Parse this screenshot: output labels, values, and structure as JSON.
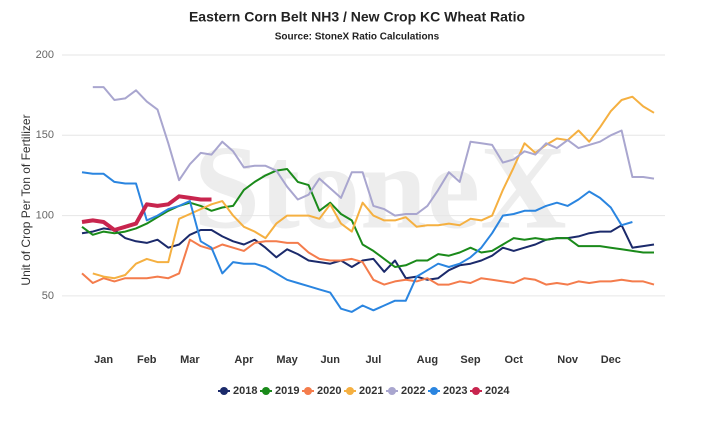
{
  "chart_data": {
    "type": "line",
    "title": "Eastern Corn Belt NH3 / New Crop KC Wheat Ratio",
    "subtitle": "Source: StoneX Ratio Calculations",
    "watermark": "StoneX",
    "y_label": "Unit of Crop Per Ton of Fertilizer",
    "categories": [
      null,
      null,
      "Jan",
      null,
      null,
      null,
      "Feb",
      null,
      null,
      null,
      "Mar",
      null,
      null,
      null,
      null,
      "Apr",
      null,
      null,
      null,
      "May",
      null,
      null,
      null,
      "Jun",
      null,
      null,
      null,
      "Jul",
      null,
      null,
      null,
      null,
      "Aug",
      null,
      null,
      null,
      "Sep",
      null,
      null,
      null,
      "Oct",
      null,
      null,
      null,
      null,
      "Nov",
      null,
      null,
      null,
      "Dec",
      null,
      null,
      null,
      null
    ],
    "ylim": [
      25,
      200
    ],
    "yticks": [
      50,
      100,
      150,
      200
    ],
    "grid": true,
    "legend": "bottom",
    "series": [
      {
        "name": "2018",
        "color": "#1b2a6b",
        "values": [
          89,
          90,
          92,
          91,
          86,
          84,
          83,
          85,
          80,
          82,
          88,
          91,
          91,
          87,
          84,
          82,
          85,
          80,
          74,
          79,
          76,
          72,
          71,
          70,
          72,
          68,
          72,
          73,
          65,
          72,
          61,
          62,
          60,
          61,
          66,
          69,
          70,
          72,
          75,
          80,
          78,
          80,
          82,
          85,
          86,
          86,
          87,
          89,
          90,
          90,
          94,
          80,
          81,
          82
        ]
      },
      {
        "name": "2019",
        "color": "#1a8a1a",
        "values": [
          93,
          88,
          90,
          89,
          90,
          92,
          95,
          99,
          103,
          106,
          108,
          106,
          103,
          105,
          106,
          116,
          121,
          125,
          128,
          129,
          121,
          119,
          103,
          108,
          101,
          97,
          82,
          78,
          73,
          68,
          69,
          72,
          72,
          76,
          75,
          77,
          80,
          77,
          78,
          82,
          86,
          85,
          86,
          85,
          86,
          86,
          81,
          81,
          81,
          80,
          79,
          78,
          77,
          77
        ]
      },
      {
        "name": "2020",
        "color": "#f47c4c",
        "values": [
          64,
          58,
          61,
          59,
          61,
          61,
          61,
          62,
          61,
          64,
          85,
          81,
          79,
          82,
          80,
          78,
          83,
          84,
          84,
          83,
          83,
          77,
          73,
          72,
          72,
          73,
          71,
          60,
          57,
          59,
          60,
          59,
          61,
          57,
          57,
          59,
          58,
          61,
          60,
          59,
          58,
          61,
          60,
          57,
          58,
          57,
          59,
          58,
          59,
          59,
          60,
          59,
          59,
          57
        ]
      },
      {
        "name": "2021",
        "color": "#f5b041",
        "values": [
          null,
          64,
          62,
          61,
          63,
          70,
          73,
          71,
          71,
          98,
          101,
          104,
          107,
          109,
          100,
          93,
          90,
          86,
          95,
          100,
          100,
          100,
          98,
          107,
          95,
          90,
          108,
          100,
          97,
          97,
          99,
          93,
          94,
          94,
          95,
          94,
          98,
          97,
          100,
          116,
          130,
          145,
          139,
          144,
          148,
          147,
          153,
          146,
          155,
          165,
          172,
          174,
          168,
          164
        ]
      },
      {
        "name": "2022",
        "color": "#a9a6cf",
        "values": [
          null,
          180,
          180,
          172,
          173,
          178,
          171,
          166,
          145,
          122,
          132,
          139,
          138,
          146,
          140,
          130,
          131,
          131,
          128,
          118,
          110,
          113,
          123,
          117,
          111,
          127,
          127,
          106,
          104,
          100,
          101,
          101,
          106,
          116,
          127,
          121,
          146,
          145,
          144,
          133,
          135,
          140,
          138,
          145,
          142,
          147,
          142,
          144,
          146,
          150,
          153,
          124,
          124,
          123
        ]
      },
      {
        "name": "2023",
        "color": "#2a85e0",
        "values": [
          127,
          126,
          126,
          121,
          120,
          120,
          97,
          100,
          104,
          106,
          109,
          84,
          80,
          64,
          71,
          70,
          70,
          68,
          64,
          60,
          58,
          56,
          54,
          52,
          42,
          40,
          44,
          41,
          44,
          47,
          47,
          62,
          66,
          70,
          68,
          70,
          74,
          80,
          89,
          100,
          101,
          103,
          103,
          106,
          108,
          106,
          110,
          115,
          111,
          105,
          94,
          96,
          null,
          null
        ]
      },
      {
        "name": "2024",
        "color": "#c8254e",
        "values": [
          96,
          97,
          96,
          91,
          93,
          95,
          107,
          106,
          107,
          112,
          111,
          110,
          110,
          null,
          null,
          null,
          null,
          null,
          null,
          null,
          null,
          null,
          null,
          null,
          null,
          null,
          null,
          null,
          null,
          null,
          null,
          null,
          null,
          null,
          null,
          null,
          null,
          null,
          null,
          null,
          null,
          null,
          null,
          null,
          null,
          null,
          null,
          null,
          null,
          null,
          null,
          null,
          null,
          null
        ]
      }
    ]
  }
}
